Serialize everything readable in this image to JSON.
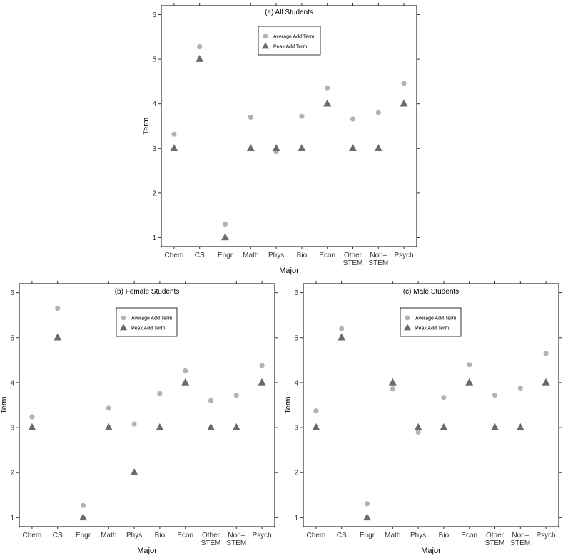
{
  "chart_data": [
    {
      "type": "scatter",
      "title": "(a) All Students",
      "xlabel": "Major",
      "ylabel": "Term",
      "ylim": [
        0.8,
        6.2
      ],
      "yticks": [
        1,
        2,
        3,
        4,
        5,
        6
      ],
      "categories": [
        "Chem",
        "CS",
        "Engr",
        "Math",
        "Phys",
        "Bio",
        "Econ",
        "Other STEM",
        "Non-STEM",
        "Psych"
      ],
      "category_labels": [
        [
          "Chem"
        ],
        [
          "CS"
        ],
        [
          "Engr"
        ],
        [
          "Math"
        ],
        [
          "Phys"
        ],
        [
          "Bio"
        ],
        [
          "Econ"
        ],
        [
          "Other",
          "STEM"
        ],
        [
          "Non–",
          "STEM"
        ],
        [
          "Psych"
        ]
      ],
      "series": [
        {
          "name": "Average Add Term",
          "marker": "circle",
          "color": "#b3b3b3",
          "values": [
            3.32,
            5.28,
            1.3,
            3.7,
            2.93,
            3.72,
            4.36,
            3.66,
            3.8,
            4.46
          ]
        },
        {
          "name": "Peak Add Term",
          "marker": "triangle",
          "color": "#6b6b6b",
          "values": [
            3,
            5,
            1,
            3,
            3,
            3,
            4,
            3,
            3,
            4
          ]
        }
      ],
      "legend_position": "top-center"
    },
    {
      "type": "scatter",
      "title": "(b) Female Students",
      "xlabel": "Major",
      "ylabel": "Term",
      "ylim": [
        0.8,
        6.2
      ],
      "yticks": [
        1,
        2,
        3,
        4,
        5,
        6
      ],
      "categories": [
        "Chem",
        "CS",
        "Engr",
        "Math",
        "Phys",
        "Bio",
        "Econ",
        "Other STEM",
        "Non-STEM",
        "Psych"
      ],
      "category_labels": [
        [
          "Chem"
        ],
        [
          "CS"
        ],
        [
          "Engr"
        ],
        [
          "Math"
        ],
        [
          "Phys"
        ],
        [
          "Bio"
        ],
        [
          "Econ"
        ],
        [
          "Other",
          "STEM"
        ],
        [
          "Non–",
          "STEM"
        ],
        [
          "Psych"
        ]
      ],
      "series": [
        {
          "name": "Average Add Term",
          "marker": "circle",
          "color": "#b3b3b3",
          "values": [
            3.24,
            5.65,
            1.27,
            3.43,
            3.08,
            3.76,
            4.26,
            3.6,
            3.72,
            4.38
          ]
        },
        {
          "name": "Peak Add Term",
          "marker": "triangle",
          "color": "#6b6b6b",
          "values": [
            3,
            5,
            1,
            3,
            2,
            3,
            4,
            3,
            3,
            4
          ]
        }
      ],
      "legend_position": "top-center"
    },
    {
      "type": "scatter",
      "title": "(c) Male Students",
      "xlabel": "Major",
      "ylabel": "Term",
      "ylim": [
        0.8,
        6.2
      ],
      "yticks": [
        1,
        2,
        3,
        4,
        5,
        6
      ],
      "categories": [
        "Chem",
        "CS",
        "Engr",
        "Math",
        "Phys",
        "Bio",
        "Econ",
        "Other STEM",
        "Non-STEM",
        "Psych"
      ],
      "category_labels": [
        [
          "Chem"
        ],
        [
          "CS"
        ],
        [
          "Engr"
        ],
        [
          "Math"
        ],
        [
          "Phys"
        ],
        [
          "Bio"
        ],
        [
          "Econ"
        ],
        [
          "Other",
          "STEM"
        ],
        [
          "Non–",
          "STEM"
        ],
        [
          "Psych"
        ]
      ],
      "series": [
        {
          "name": "Average Add Term",
          "marker": "circle",
          "color": "#b3b3b3",
          "values": [
            3.37,
            5.2,
            1.31,
            3.86,
            2.9,
            3.67,
            4.4,
            3.72,
            3.88,
            4.65
          ]
        },
        {
          "name": "Peak Add Term",
          "marker": "triangle",
          "color": "#6b6b6b",
          "values": [
            3,
            5,
            1,
            4,
            3,
            3,
            4,
            3,
            3,
            4
          ]
        }
      ],
      "legend_position": "top-center"
    }
  ]
}
